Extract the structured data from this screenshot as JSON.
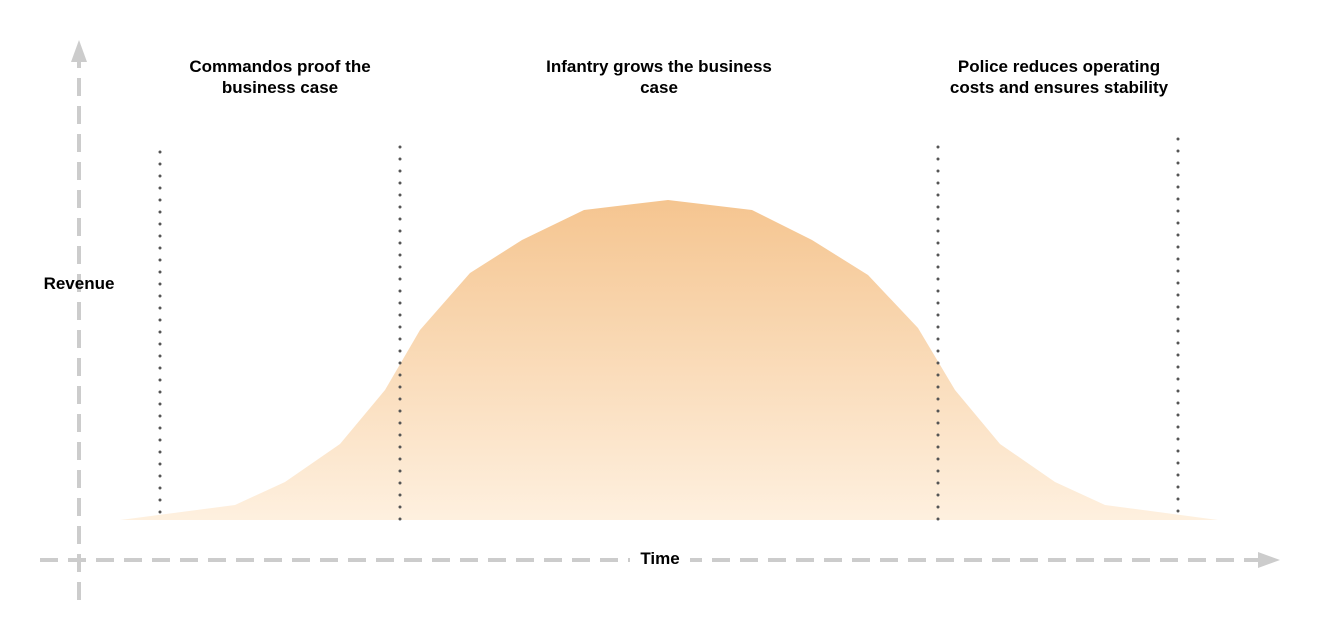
{
  "phases": [
    {
      "label": "Commandos proof the business case"
    },
    {
      "label": "Infantry grows the business case"
    },
    {
      "label": "Police reduces operating costs and ensures stability"
    }
  ],
  "axes": {
    "y_label": "Revenue",
    "x_label": "Time"
  },
  "colors": {
    "curve_top": "#F5C590",
    "curve_bottom": "#FEF0DF",
    "axis": "#CCCCCC",
    "divider": "#555555",
    "text": "#000000"
  }
}
